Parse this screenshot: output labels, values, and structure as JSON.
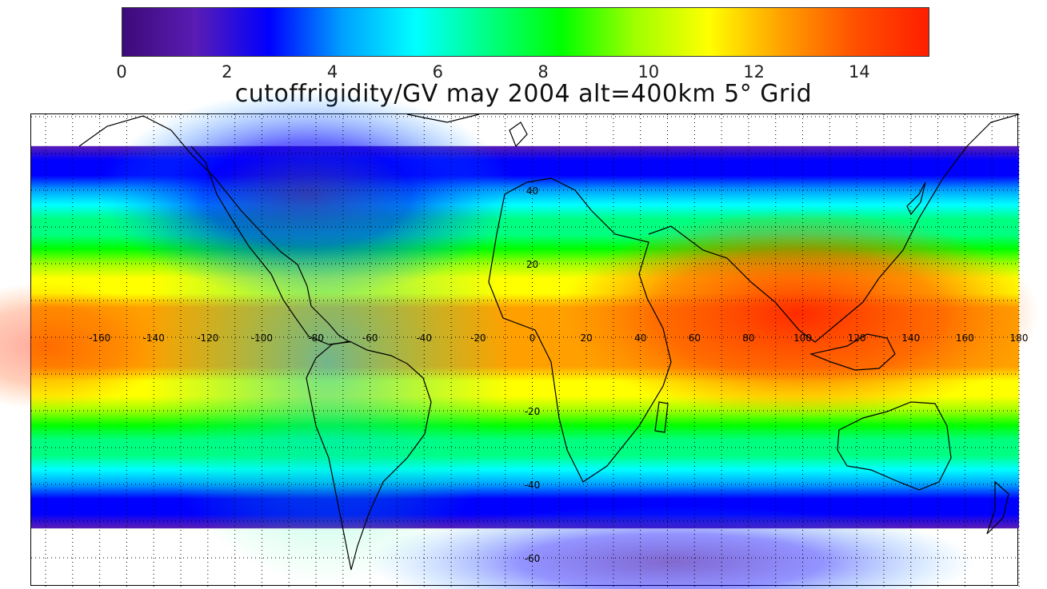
{
  "title": "cutoffrigidity/GV may 2004 alt=400km 5° Grid",
  "colorbar": {
    "min": 0,
    "max": 15.3,
    "ticks": [
      "0",
      "2",
      "4",
      "6",
      "8",
      "10",
      "12",
      "14"
    ],
    "colors": [
      "#3c0a78",
      "#5a1cb4",
      "#0000ff",
      "#00a0ff",
      "#00ffff",
      "#00ff80",
      "#00ff00",
      "#a0ff00",
      "#ffff00",
      "#ffa000",
      "#ff5000",
      "#ff1e00"
    ]
  },
  "map": {
    "lon_ticks": [
      "-160",
      "-140",
      "-120",
      "-100",
      "-80",
      "-60",
      "-40",
      "-20",
      "0",
      "20",
      "40",
      "60",
      "80",
      "100",
      "120",
      "140",
      "160",
      "180"
    ],
    "lat_ticks": [
      "40",
      "20",
      "-20",
      "-40",
      "-60"
    ],
    "data_lat_range": [
      -52,
      52
    ],
    "grid": "dotted, 5° spacing"
  }
}
